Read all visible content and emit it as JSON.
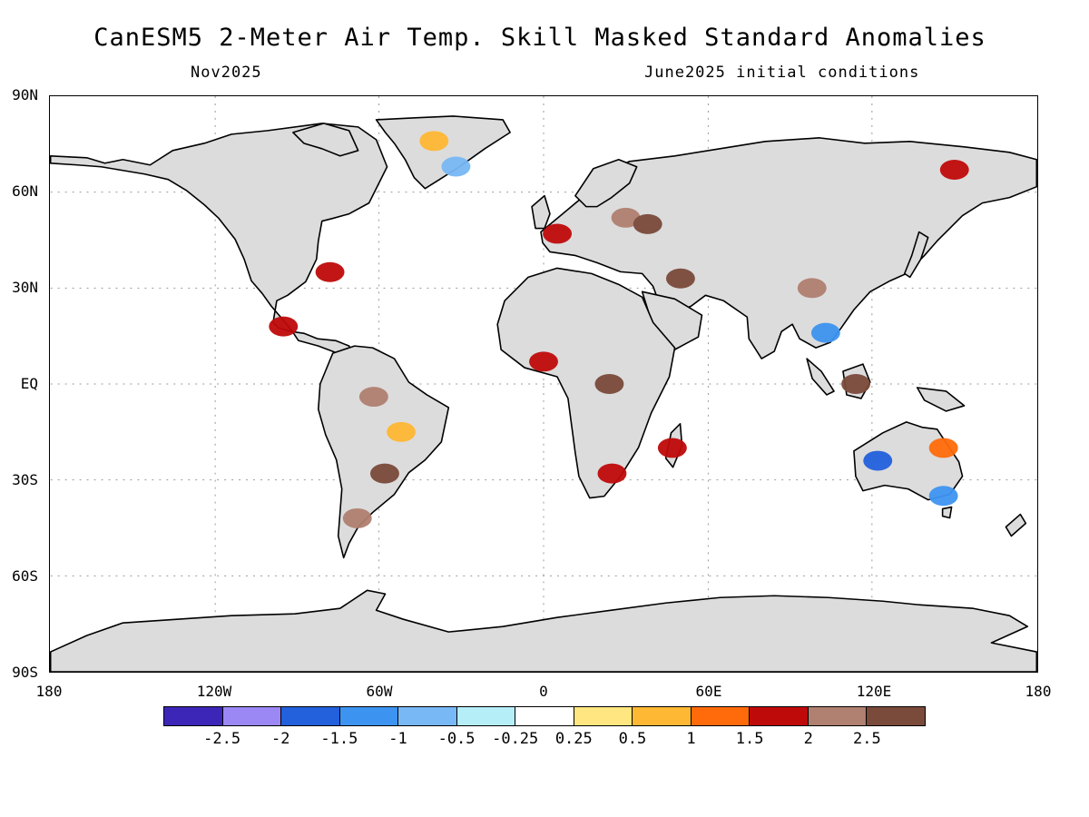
{
  "header": {
    "title": "CanESM5 2-Meter Air Temp. Skill Masked Standard Anomalies",
    "valid_month": "Nov2025",
    "initial_conditions": "June2025 initial conditions"
  },
  "axes": {
    "lat_labels": [
      "90N",
      "60N",
      "30N",
      "EQ",
      "30S",
      "60S",
      "90S"
    ],
    "lon_labels": [
      "180",
      "120W",
      "60W",
      "0",
      "60E",
      "120E",
      "180"
    ]
  },
  "legend": {
    "colors": [
      "#3b26b8",
      "#9b88f5",
      "#2260dc",
      "#3d94f0",
      "#78b8f5",
      "#b6eef8",
      "#ffffff",
      "#ffe680",
      "#ffb833",
      "#ff6a0a",
      "#bf0a0a",
      "#b08070",
      "#7a4a3a"
    ],
    "labels": [
      "-2.5",
      "-2",
      "-1.5",
      "-1",
      "-0.5",
      "-0.25",
      "0.25",
      "0.5",
      "1",
      "1.5",
      "2",
      "2.5"
    ]
  },
  "colors": {
    "land_mask": "#dcdcdc",
    "ocean": "#ffffff",
    "coastline": "#000000",
    "grid": "#9a9a9a"
  },
  "map_data": {
    "projection": "cylindrical equidistant",
    "lon_range": [
      -180,
      180
    ],
    "lat_range": [
      -90,
      90
    ],
    "anomaly_regions": [
      {
        "region": "Eastern Europe / western Russia",
        "category": "2",
        "lon": 30,
        "lat": 52
      },
      {
        "region": "Western Europe / Alps",
        "category": "1.5",
        "lon": 5,
        "lat": 47
      },
      {
        "region": "Ukraine / Black Sea",
        "category": "2.5",
        "lon": 38,
        "lat": 50
      },
      {
        "region": "Greenland interior",
        "category": "0.5",
        "lon": -40,
        "lat": 76
      },
      {
        "region": "Greenland east coast",
        "category": "-0.5",
        "lon": -32,
        "lat": 68
      },
      {
        "region": "Chukotka / Far East Russia",
        "category": "1.5",
        "lon": 150,
        "lat": 67
      },
      {
        "region": "Tibet / Southwest China",
        "category": "2",
        "lon": 98,
        "lat": 30
      },
      {
        "region": "Indochina",
        "category": "-1",
        "lon": 103,
        "lat": 16
      },
      {
        "region": "Amazon basin",
        "category": "2",
        "lon": -62,
        "lat": -4
      },
      {
        "region": "Central Brazil",
        "category": "0.5",
        "lon": -52,
        "lat": -15
      },
      {
        "region": "Paraguay / Southern Brazil",
        "category": "2.5",
        "lon": -58,
        "lat": -28
      },
      {
        "region": "Patagonia",
        "category": "2",
        "lon": -68,
        "lat": -42
      },
      {
        "region": "Southern Africa",
        "category": "1.5",
        "lon": 25,
        "lat": -28
      },
      {
        "region": "Congo basin",
        "category": "2.5",
        "lon": 24,
        "lat": 0
      },
      {
        "region": "West Africa coast",
        "category": "1.5",
        "lon": 0,
        "lat": 7
      },
      {
        "region": "Madagascar",
        "category": "1.5",
        "lon": 47,
        "lat": -20
      },
      {
        "region": "Western Australia",
        "category": "-1.5",
        "lon": 122,
        "lat": -24
      },
      {
        "region": "Southeast Australia",
        "category": "-1",
        "lon": 146,
        "lat": -35
      },
      {
        "region": "Queensland coast",
        "category": "1",
        "lon": 146,
        "lat": -20
      },
      {
        "region": "Borneo",
        "category": "2.5",
        "lon": 114,
        "lat": 0
      },
      {
        "region": "Middle East / Iran",
        "category": "2.5",
        "lon": 50,
        "lat": 33
      },
      {
        "region": "Mexico / Central America",
        "category": "1.5",
        "lon": -95,
        "lat": 18
      },
      {
        "region": "US East Coast",
        "category": "1.5",
        "lon": -78,
        "lat": 35
      }
    ]
  }
}
